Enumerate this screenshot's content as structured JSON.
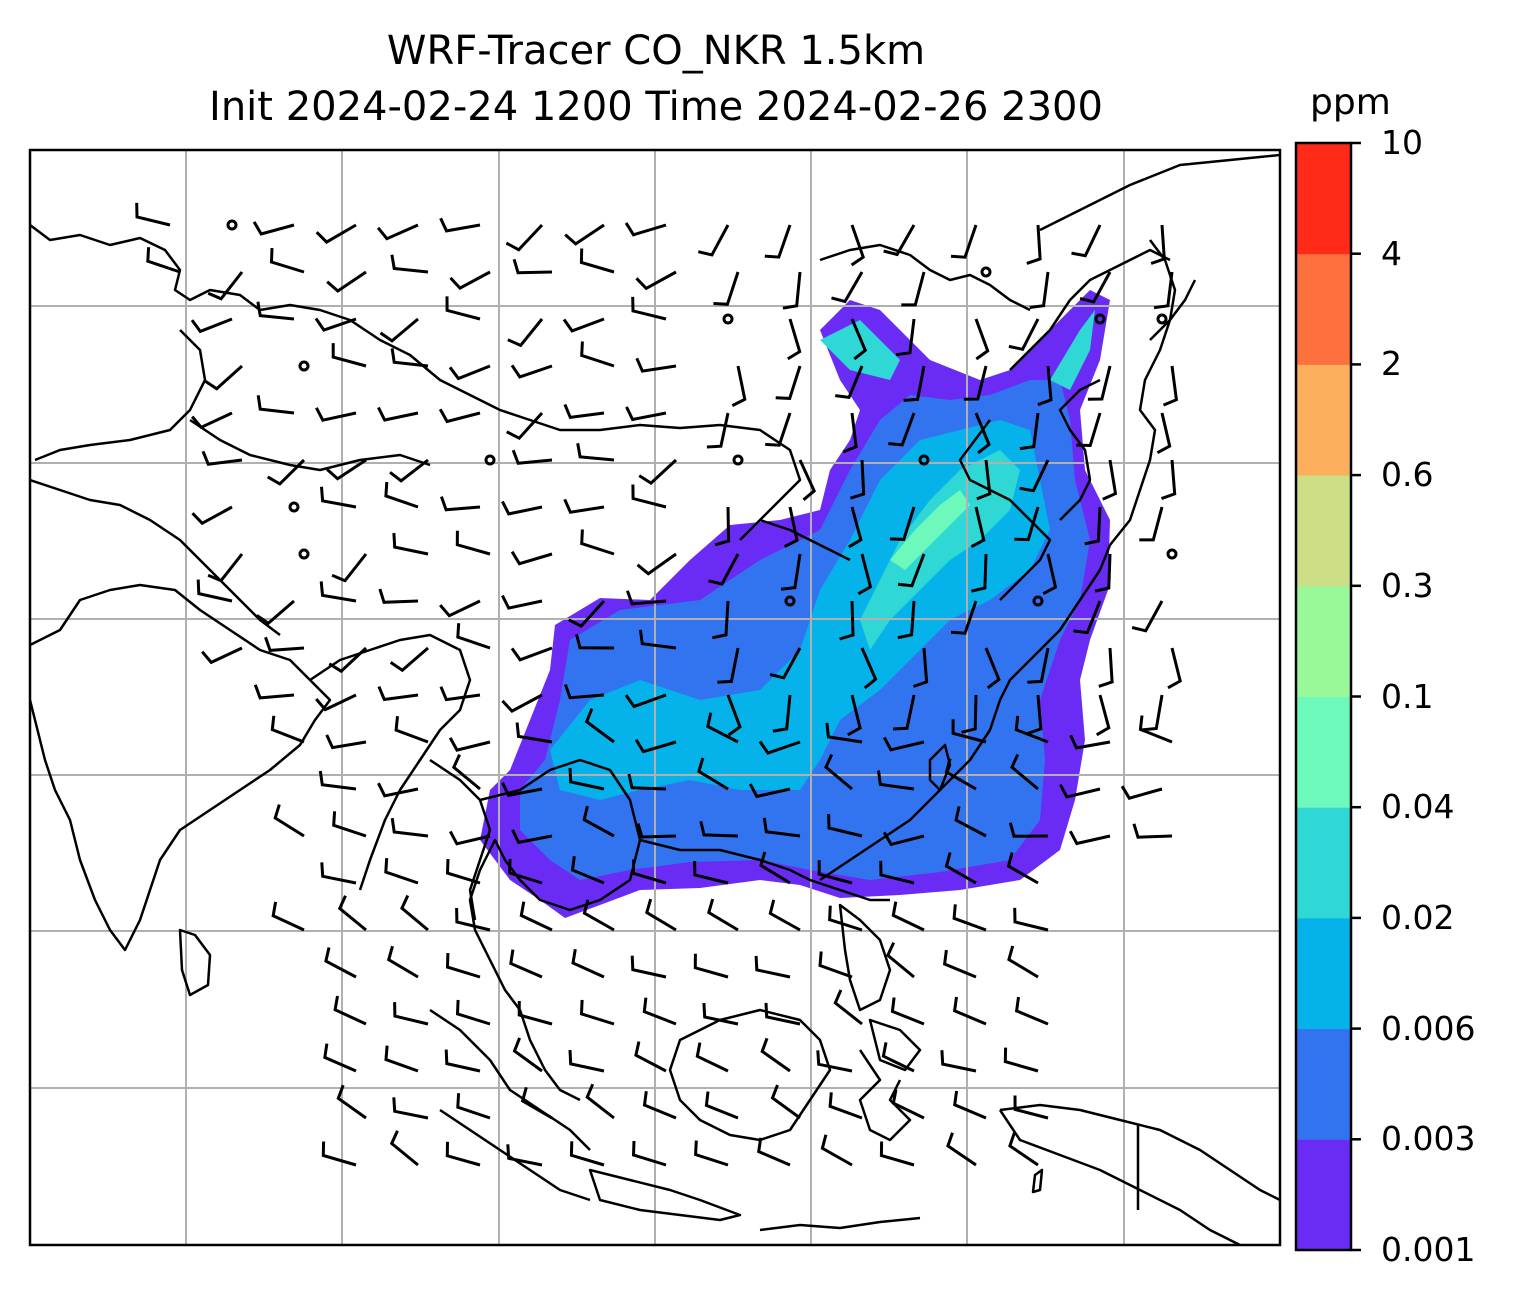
{
  "title": {
    "line1": "WRF-Tracer CO_NKR 1.5km",
    "line2": "Init 2024-02-24 1200 Time 2024-02-26 2300"
  },
  "colorbar": {
    "unit": "ppm",
    "levels": [
      "0.001",
      "0.003",
      "0.006",
      "0.02",
      "0.04",
      "0.1",
      "0.3",
      "0.6",
      "2",
      "4",
      "10"
    ],
    "colors": [
      "#6a2cf5",
      "#3274f0",
      "#05b2ea",
      "#2fd8d5",
      "#6ef9bc",
      "#99f898",
      "#cddf86",
      "#fcb05e",
      "#fe703d",
      "#ff2b18"
    ]
  },
  "map": {
    "grid": true,
    "coastline_color": "#000000",
    "gridline_color": "#b0b0b0"
  },
  "chart_data": {
    "type": "heatmap",
    "title": "WRF-Tracer CO_NKR 1.5km / Init 2024-02-24 1200 Time 2024-02-26 2300",
    "colorbar_unit": "ppm",
    "colorbar_levels": [
      0.001,
      0.003,
      0.006,
      0.02,
      0.04,
      0.1,
      0.3,
      0.6,
      2,
      4,
      10
    ],
    "overlay": "wind barbs",
    "grid": true
  }
}
